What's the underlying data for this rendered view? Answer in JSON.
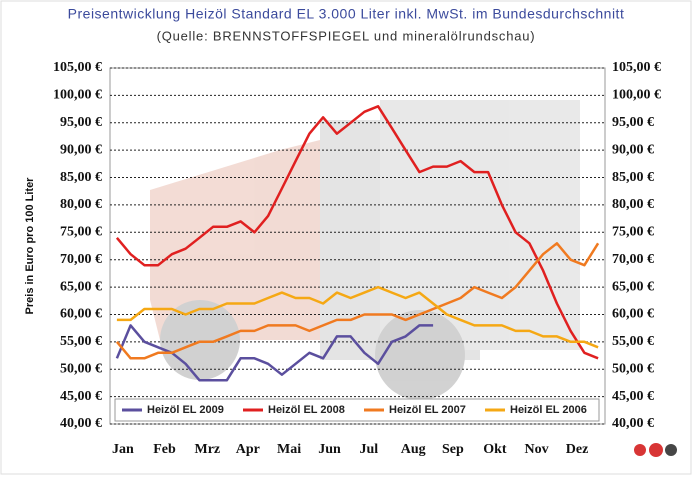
{
  "chart_data": {
    "type": "line",
    "title": "Preisentwicklung Heizöl Standard EL 3.000 Liter inkl. MwSt. im Bundesdurchschnitt",
    "subtitle": "(Quelle: BRENNSTOFFSPIEGEL und mineralölrundschau)",
    "y_label": "Preis in Euro pro 100 Liter",
    "categories": [
      "Jan",
      null,
      null,
      "Feb",
      null,
      null,
      "Mrz",
      null,
      null,
      "Apr",
      null,
      null,
      "Mai",
      null,
      null,
      "Jun",
      null,
      null,
      "Jul",
      null,
      null,
      "Aug",
      null,
      null,
      "Sep",
      null,
      null,
      "Okt",
      null,
      null,
      "Nov",
      null,
      null,
      "Dez",
      null,
      null
    ],
    "ylim": [
      40,
      105
    ],
    "yticks": [
      {
        "value": 40,
        "label": "40,00 €"
      },
      {
        "value": 45,
        "label": "45,00 €"
      },
      {
        "value": 50,
        "label": "50,00 €"
      },
      {
        "value": 55,
        "label": "55,00 €"
      },
      {
        "value": 60,
        "label": "60,00 €"
      },
      {
        "value": 65,
        "label": "65,00 €"
      },
      {
        "value": 70,
        "label": "70,00 €"
      },
      {
        "value": 75,
        "label": "75,00 €"
      },
      {
        "value": 80,
        "label": "80,00 €"
      },
      {
        "value": 85,
        "label": "85,00 €"
      },
      {
        "value": 90,
        "label": "90,00 €"
      },
      {
        "value": 95,
        "label": "95,00 €"
      },
      {
        "value": 100,
        "label": "100,00 €"
      },
      {
        "value": 105,
        "label": "105,00 €"
      }
    ],
    "grid": true,
    "series": [
      {
        "name": "Heizöl EL 2009",
        "color": "#5b4f9e",
        "values": [
          52,
          58,
          55,
          54,
          53,
          51,
          48,
          48,
          48,
          52,
          52,
          51,
          49,
          51,
          53,
          52,
          56,
          56,
          53,
          51,
          55,
          56,
          58,
          58,
          null,
          null,
          null,
          null,
          null,
          null,
          null,
          null,
          null,
          null,
          null,
          null
        ]
      },
      {
        "name": "Heizöl EL 2008",
        "color": "#e02020",
        "values": [
          74,
          71,
          69,
          69,
          71,
          72,
          74,
          76,
          76,
          77,
          75,
          78,
          83,
          88,
          93,
          96,
          93,
          95,
          97,
          98,
          94,
          90,
          86,
          87,
          87,
          88,
          86,
          86,
          80,
          75,
          73,
          68,
          62,
          57,
          53,
          52
        ]
      },
      {
        "name": "Heizöl EL 2007",
        "color": "#f07a20",
        "values": [
          55,
          52,
          52,
          53,
          53,
          54,
          55,
          55,
          56,
          57,
          57,
          58,
          58,
          58,
          57,
          58,
          59,
          59,
          60,
          60,
          60,
          59,
          60,
          61,
          62,
          63,
          65,
          64,
          63,
          65,
          68,
          71,
          73,
          70,
          69,
          73
        ]
      },
      {
        "name": "Heizöl EL 2006",
        "color": "#f5a814",
        "values": [
          59,
          59,
          61,
          61,
          61,
          60,
          61,
          61,
          62,
          62,
          62,
          63,
          64,
          63,
          63,
          62,
          64,
          63,
          64,
          65,
          64,
          63,
          64,
          62,
          60,
          59,
          58,
          58,
          58,
          57,
          57,
          56,
          56,
          55,
          55,
          54
        ]
      }
    ]
  }
}
